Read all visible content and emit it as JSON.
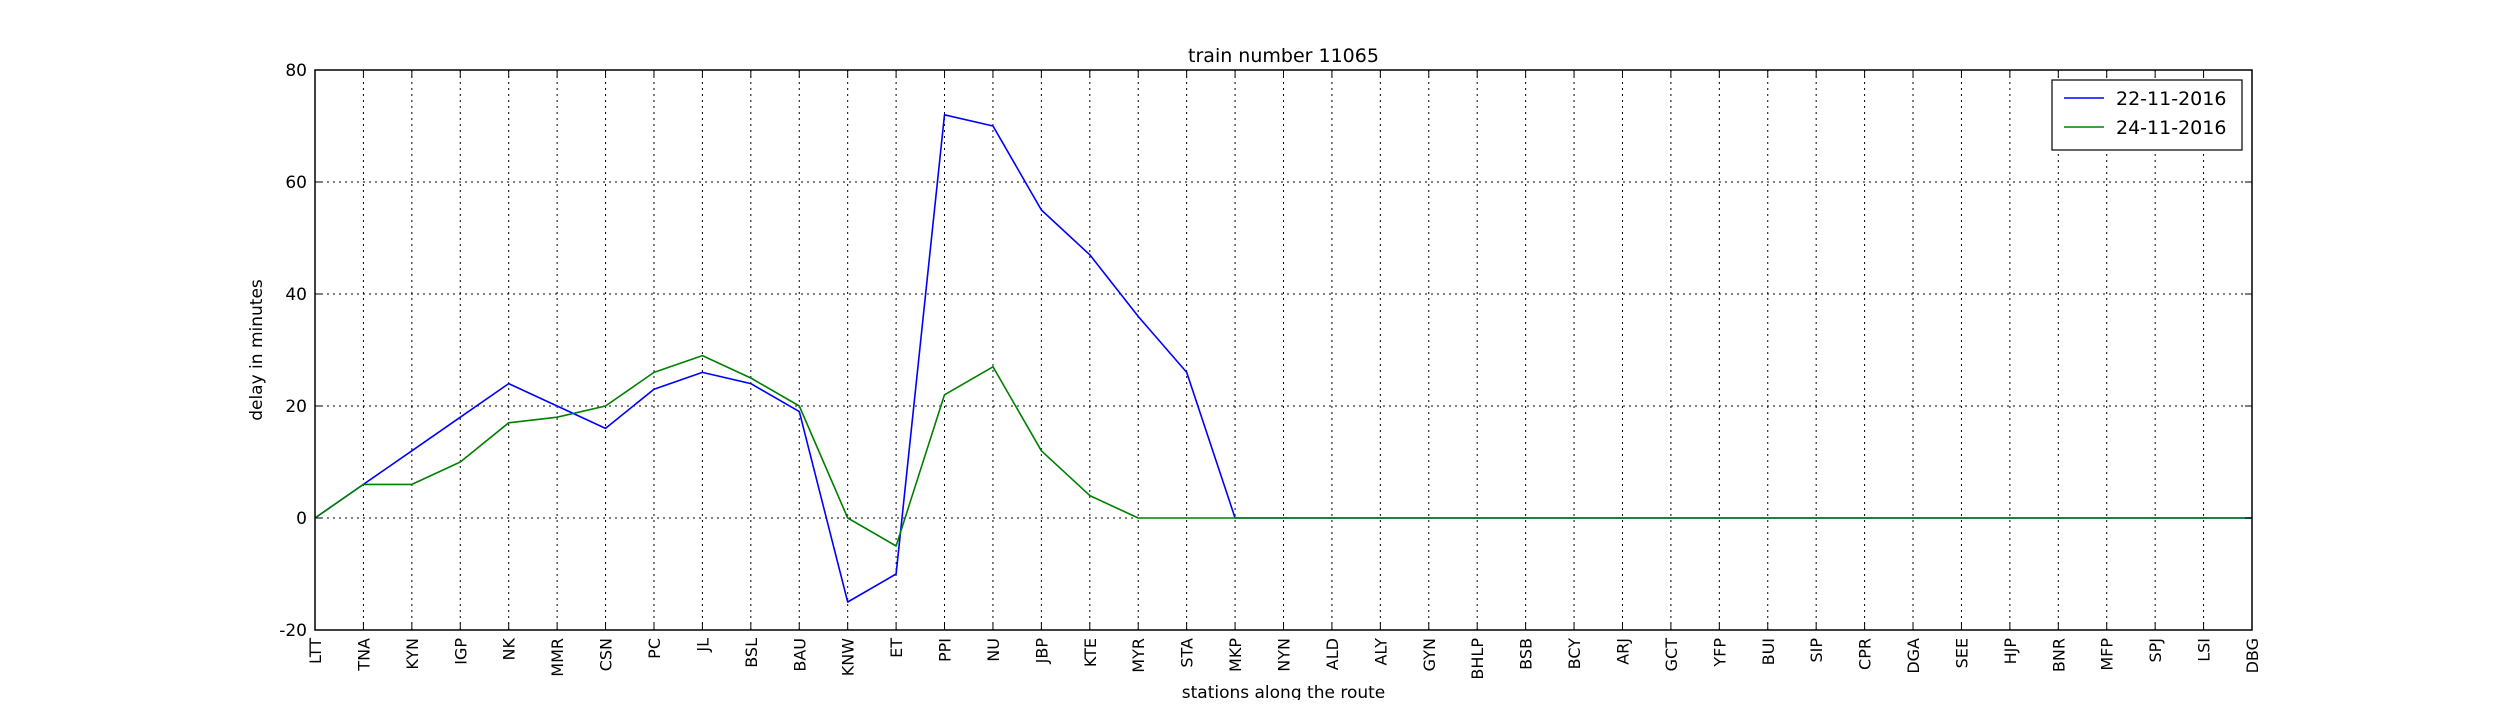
{
  "chart_data": {
    "type": "line",
    "title": "train number 11065",
    "xlabel": "stations along the route",
    "ylabel": "delay in minutes",
    "ylim": [
      -20,
      80
    ],
    "yticks": [
      -20,
      0,
      20,
      40,
      60,
      80
    ],
    "grid": true,
    "legend_position": "top-right",
    "categories": [
      "LTT",
      "TNA",
      "KYN",
      "IGP",
      "NK",
      "MMR",
      "CSN",
      "PC",
      "JL",
      "BSL",
      "BAU",
      "KNW",
      "ET",
      "PPI",
      "NU",
      "JBP",
      "KTE",
      "MYR",
      "STA",
      "MKP",
      "NYN",
      "ALD",
      "ALY",
      "GYN",
      "BHLP",
      "BSB",
      "BCY",
      "ARJ",
      "GCT",
      "YFP",
      "BUI",
      "SIP",
      "CPR",
      "DGA",
      "SEE",
      "HJP",
      "BNR",
      "MFP",
      "SPJ",
      "LSI",
      "DBG"
    ],
    "series": [
      {
        "name": "22-11-2016",
        "color": "#0000ff",
        "values": [
          0,
          6,
          12,
          18,
          24,
          20,
          16,
          23,
          26,
          24,
          19,
          -15,
          -10,
          72,
          70,
          55,
          47,
          36,
          26,
          0,
          0,
          0,
          0,
          0,
          0,
          0,
          0,
          0,
          0,
          0,
          0,
          0,
          0,
          0,
          0,
          0,
          0,
          0,
          0,
          0,
          0
        ]
      },
      {
        "name": "24-11-2016",
        "color": "#008000",
        "values": [
          0,
          6,
          6,
          10,
          17,
          18,
          20,
          26,
          29,
          25,
          20,
          0,
          -5,
          22,
          27,
          12,
          4,
          0,
          0,
          0,
          0,
          0,
          0,
          0,
          0,
          0,
          0,
          0,
          0,
          0,
          0,
          0,
          0,
          0,
          0,
          0,
          0,
          0,
          0,
          0,
          0
        ]
      }
    ]
  }
}
